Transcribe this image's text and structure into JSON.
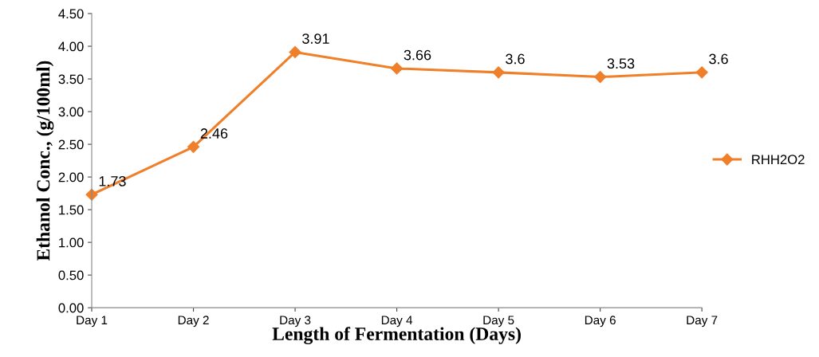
{
  "chart_data": {
    "type": "line",
    "xlabel": "Length of Fermentation (Days)",
    "ylabel": "Ethanol Conc., (g/100ml)",
    "categories": [
      "Day 1",
      "Day 2",
      "Day 3",
      "Day 4",
      "Day 5",
      "Day 6",
      "Day 7"
    ],
    "series": [
      {
        "name": "RHH2O2",
        "color": "#f07f2a",
        "values": [
          1.73,
          2.46,
          3.91,
          3.66,
          3.6,
          3.53,
          3.6
        ]
      }
    ],
    "ylim": [
      0,
      4.5
    ],
    "yticks": [
      {
        "value": 0,
        "label": "0.00"
      },
      {
        "value": 0.5,
        "label": "0.50"
      },
      {
        "value": 1,
        "label": "1.00"
      },
      {
        "value": 1.5,
        "label": "1.50"
      },
      {
        "value": 2,
        "label": "2.00"
      },
      {
        "value": 2.5,
        "label": "2.50"
      },
      {
        "value": 3,
        "label": "3.00"
      },
      {
        "value": 3.5,
        "label": "3.50"
      },
      {
        "value": 4,
        "label": "4.00"
      },
      {
        "value": 4.5,
        "label": "4.50"
      }
    ],
    "data_labels": true,
    "legend": "right",
    "grid": false,
    "marker": "diamond",
    "line_style": "solid"
  }
}
